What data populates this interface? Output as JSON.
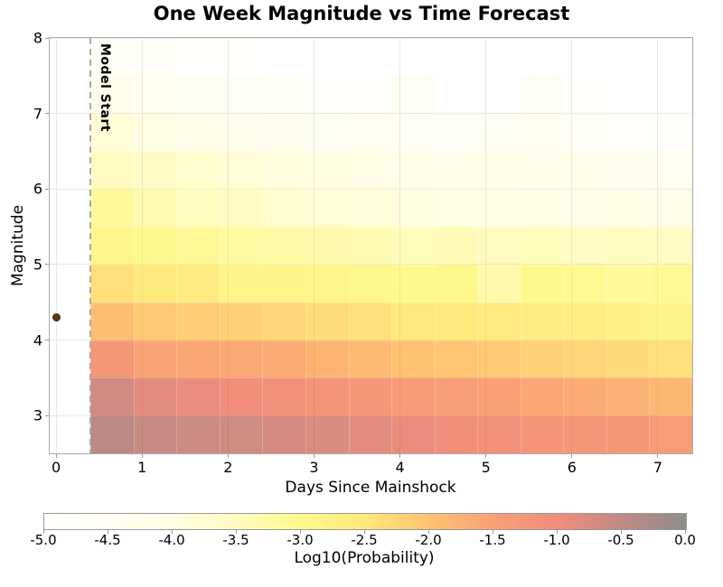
{
  "title": "One Week Magnitude vs Time Forecast",
  "chart_data": {
    "type": "heatmap",
    "title": "One Week Magnitude vs Time Forecast",
    "xlabel": "Days Since Mainshock",
    "ylabel": "Magnitude",
    "xlim": [
      -0.075,
      7.4
    ],
    "ylim": [
      2.5,
      8.0
    ],
    "x_ticks": [
      0,
      1,
      2,
      3,
      4,
      5,
      6,
      7
    ],
    "y_ticks": [
      3,
      4,
      5,
      6,
      7,
      8
    ],
    "grid": true,
    "model_start_label": "Model Start",
    "model_start_day": 0.4,
    "mainshock": {
      "day": 0.0,
      "magnitude": 4.3
    },
    "time_bin_edges_days": [
      0.4,
      0.9,
      1.4,
      1.9,
      2.4,
      2.9,
      3.4,
      3.9,
      4.4,
      4.9,
      5.4,
      5.9,
      6.4,
      6.9,
      7.4
    ],
    "magnitude_bin_edges": [
      2.5,
      3.0,
      3.5,
      4.0,
      4.5,
      5.0,
      5.5,
      6.0,
      6.5,
      7.0,
      7.5,
      8.0
    ],
    "rows": [
      {
        "mag_range": "7.5-8.0",
        "values": [
          -4.7,
          -4.75,
          -4.9,
          -4.85,
          -5.0,
          -4.95,
          -5.0,
          -5.0,
          -4.95,
          -5.0,
          -5.0,
          -5.0,
          -5.0,
          -5.0
        ]
      },
      {
        "mag_range": "7.0-7.5",
        "values": [
          -4.2,
          -4.4,
          -4.5,
          -4.6,
          -4.75,
          -4.9,
          -4.85,
          -4.6,
          -4.95,
          -5.0,
          -4.65,
          -4.9,
          -5.0,
          -4.95
        ]
      },
      {
        "mag_range": "6.5-7.0",
        "values": [
          -3.8,
          -4.0,
          -4.15,
          -4.25,
          -4.35,
          -4.5,
          -4.45,
          -4.6,
          -4.7,
          -4.55,
          -4.4,
          -4.75,
          -4.85,
          -4.8
        ]
      },
      {
        "mag_range": "6.0-6.5",
        "values": [
          -3.5,
          -3.6,
          -3.7,
          -3.8,
          -3.9,
          -3.95,
          -4.05,
          -4.1,
          -4.2,
          -4.15,
          -4.25,
          -4.2,
          -4.35,
          -4.45
        ]
      },
      {
        "mag_range": "5.5-6.0",
        "values": [
          -3.15,
          -3.35,
          -3.5,
          -3.6,
          -3.7,
          -3.8,
          -3.85,
          -3.95,
          -4.0,
          -4.05,
          -4.0,
          -4.1,
          -4.05,
          -4.1
        ]
      },
      {
        "mag_range": "5.0-5.5",
        "values": [
          -2.9,
          -3.0,
          -3.1,
          -3.2,
          -3.25,
          -3.3,
          -3.35,
          -3.45,
          -3.4,
          -3.5,
          -3.45,
          -3.55,
          -3.5,
          -3.55
        ]
      },
      {
        "mag_range": "4.5-5.0",
        "values": [
          -2.4,
          -2.55,
          -2.6,
          -2.85,
          -2.85,
          -2.9,
          -2.95,
          -3.0,
          -2.95,
          -3.3,
          -3.0,
          -3.05,
          -3.15,
          -3.1
        ]
      },
      {
        "mag_range": "4.0-4.5",
        "values": [
          -1.95,
          -2.1,
          -2.15,
          -2.2,
          -2.25,
          -2.35,
          -2.4,
          -2.5,
          -2.55,
          -2.6,
          -2.65,
          -2.7,
          -2.75,
          -2.85
        ]
      },
      {
        "mag_range": "3.5-4.0",
        "values": [
          -1.3,
          -1.55,
          -1.6,
          -1.65,
          -1.7,
          -1.8,
          -1.9,
          -2.0,
          -2.05,
          -2.1,
          -2.2,
          -2.25,
          -2.3,
          -2.4
        ]
      },
      {
        "mag_range": "3.0-3.5",
        "values": [
          -0.68,
          -0.85,
          -0.95,
          -1.05,
          -1.1,
          -1.18,
          -1.25,
          -1.35,
          -1.45,
          -1.5,
          -1.6,
          -1.7,
          -1.75,
          -1.85
        ]
      },
      {
        "mag_range": "2.5-3.0",
        "values": [
          -0.45,
          -0.58,
          -0.62,
          -0.67,
          -0.72,
          -0.78,
          -0.85,
          -0.95,
          -1.05,
          -1.1,
          -1.2,
          -1.25,
          -1.3,
          -1.4
        ]
      }
    ],
    "colorbar": {
      "label": "Log10(Probability)",
      "vmin": -5.0,
      "vmax": 0.0,
      "ticks": [
        "-5.0",
        "-4.5",
        "-4.0",
        "-3.5",
        "-3.0",
        "-2.5",
        "-2.0",
        "-1.5",
        "-1.0",
        "-0.5",
        "0.0"
      ],
      "stops": [
        {
          "value": -5.0,
          "color": "#ffffff"
        },
        {
          "value": -4.0,
          "color": "#fffde4"
        },
        {
          "value": -3.5,
          "color": "#fffbc0"
        },
        {
          "value": -3.0,
          "color": "#fef98c"
        },
        {
          "value": -2.5,
          "color": "#ffe87c"
        },
        {
          "value": -2.0,
          "color": "#ffc172"
        },
        {
          "value": -1.5,
          "color": "#f9a075"
        },
        {
          "value": -1.0,
          "color": "#f08d7c"
        },
        {
          "value": -0.5,
          "color": "#c08a85"
        },
        {
          "value": 0.0,
          "color": "#8e8d8d"
        }
      ]
    }
  }
}
